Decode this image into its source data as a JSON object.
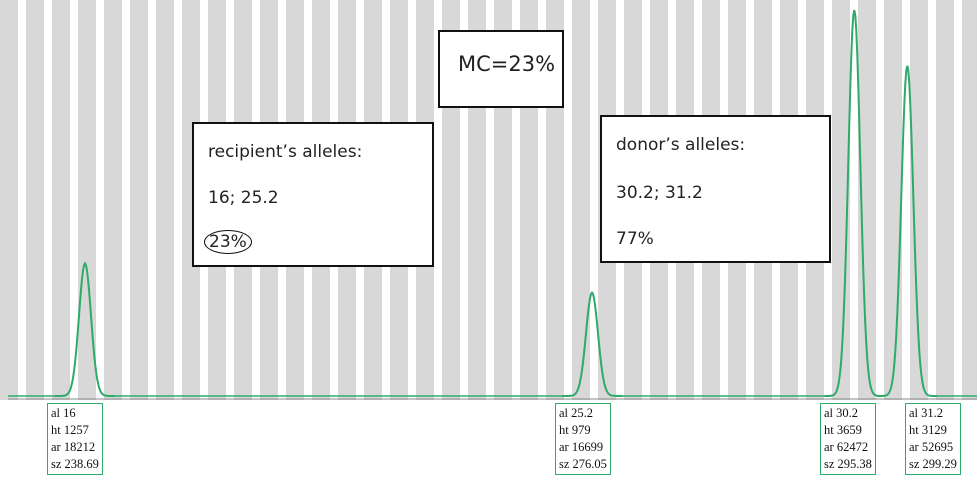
{
  "annotations": {
    "mc": "MC=23%",
    "recipient": {
      "title": "recipient’s alleles:",
      "alleles": "16; 25.2",
      "percent": "23%"
    },
    "donor": {
      "title": "donor’s alleles:",
      "alleles": "30.2; 31.2",
      "percent": "77%"
    }
  },
  "field_labels": [
    "al",
    "ht",
    "ar",
    "sz"
  ],
  "peaks": [
    {
      "al": 16,
      "ht": 1257,
      "ar": 18212,
      "sz": 238.69
    },
    {
      "al": 25.2,
      "ht": 979,
      "ar": 16699,
      "sz": 276.05
    },
    {
      "al": 30.2,
      "ht": 3659,
      "ar": 62472,
      "sz": 295.38
    },
    {
      "al": 31.2,
      "ht": 3129,
      "ar": 52695,
      "sz": 299.29
    }
  ],
  "trace_color": "#2eaa6a"
}
